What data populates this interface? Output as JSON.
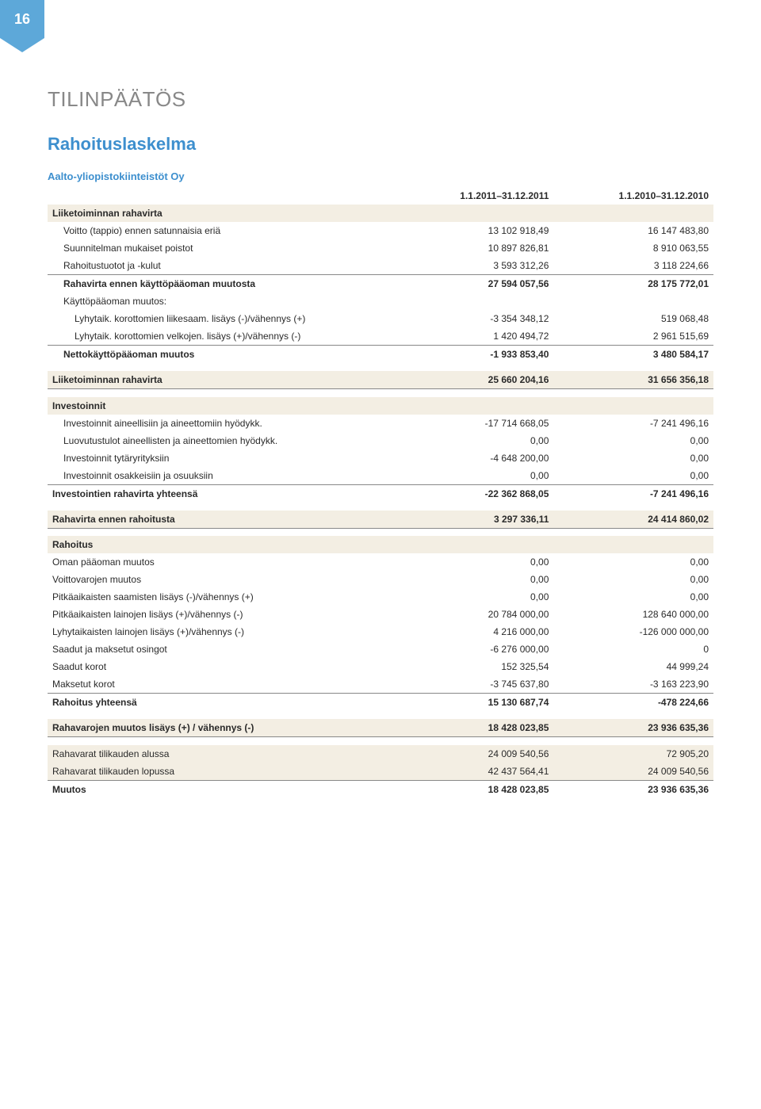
{
  "page_number": "16",
  "title": "TILINPÄÄTÖS",
  "subtitle": "Rahoituslaskelma",
  "company": "Aalto-yliopistokiinteistöt Oy",
  "col_headers": [
    "",
    "1.1.2011–31.12.2011",
    "1.1.2010–31.12.2010"
  ],
  "rows": [
    {
      "label": "Liiketoiminnan rahavirta",
      "v1": "",
      "v2": "",
      "bold": true,
      "band": true
    },
    {
      "label": "Voitto (tappio) ennen satunnaisia eriä",
      "v1": "13 102 918,49",
      "v2": "16 147 483,80",
      "indent": 1
    },
    {
      "label": "Suunnitelman mukaiset poistot",
      "v1": "10 897 826,81",
      "v2": "8 910 063,55",
      "indent": 1
    },
    {
      "label": "Rahoitustuotot ja -kulut",
      "v1": "3 593 312,26",
      "v2": "3 118 224,66",
      "indent": 1,
      "underline": true
    },
    {
      "label": "Rahavirta ennen käyttöpääoman muutosta",
      "v1": "27 594 057,56",
      "v2": "28 175 772,01",
      "bold": true,
      "indent": 1
    },
    {
      "label": "Käyttöpääoman muutos:",
      "v1": "",
      "v2": "",
      "indent": 1
    },
    {
      "label": "Lyhytaik. korottomien liikesaam. lisäys (-)/vähennys (+)",
      "v1": "-3 354 348,12",
      "v2": "519 068,48",
      "indent": 2
    },
    {
      "label": "Lyhytaik. korottomien velkojen. lisäys (+)/vähennys (-)",
      "v1": "1 420 494,72",
      "v2": "2 961 515,69",
      "indent": 2,
      "underline": true
    },
    {
      "label": "Nettokäyttöpääoman muutos",
      "v1": "-1 933 853,40",
      "v2": "3 480 584,17",
      "bold": true,
      "indent": 1
    },
    {
      "gap": true
    },
    {
      "label": "Liiketoiminnan rahavirta",
      "v1": "25 660 204,16",
      "v2": "31 656 356,18",
      "bold": true,
      "band": true,
      "underline": true
    },
    {
      "gap": true
    },
    {
      "label": "Investoinnit",
      "v1": "",
      "v2": "",
      "bold": true,
      "band": true
    },
    {
      "label": "Investoinnit aineellisiin ja aineettomiin hyödykk.",
      "v1": "-17 714 668,05",
      "v2": "-7 241 496,16",
      "indent": 1
    },
    {
      "label": "Luovutustulot aineellisten ja aineettomien hyödykk.",
      "v1": "0,00",
      "v2": "0,00",
      "indent": 1
    },
    {
      "label": "Investoinnit tytäryrityksiin",
      "v1": "-4 648 200,00",
      "v2": "0,00",
      "indent": 1
    },
    {
      "label": "Investoinnit osakkeisiin ja osuuksiin",
      "v1": "0,00",
      "v2": "0,00",
      "indent": 1,
      "underline": true
    },
    {
      "label": "Investointien rahavirta yhteensä",
      "v1": "-22 362 868,05",
      "v2": "-7 241 496,16",
      "bold": true
    },
    {
      "gap": true
    },
    {
      "label": "Rahavirta ennen rahoitusta",
      "v1": "3 297 336,11",
      "v2": "24 414 860,02",
      "bold": true,
      "band": true,
      "underline": true
    },
    {
      "gap": true
    },
    {
      "label": "Rahoitus",
      "v1": "",
      "v2": "",
      "bold": true,
      "band": true
    },
    {
      "label": "Oman pääoman muutos",
      "v1": "0,00",
      "v2": "0,00"
    },
    {
      "label": "Voittovarojen muutos",
      "v1": "0,00",
      "v2": "0,00"
    },
    {
      "label": "Pitkäaikaisten saamisten lisäys (-)/vähennys (+)",
      "v1": "0,00",
      "v2": "0,00"
    },
    {
      "label": "Pitkäaikaisten lainojen lisäys (+)/vähennys (-)",
      "v1": "20 784 000,00",
      "v2": "128 640 000,00"
    },
    {
      "label": "Lyhytaikaisten lainojen lisäys (+)/vähennys (-)",
      "v1": "4 216 000,00",
      "v2": "-126 000 000,00"
    },
    {
      "label": "Saadut ja maksetut osingot",
      "v1": "-6 276 000,00",
      "v2": "0"
    },
    {
      "label": "Saadut korot",
      "v1": "152 325,54",
      "v2": "44 999,24"
    },
    {
      "label": "Maksetut korot",
      "v1": "-3 745 637,80",
      "v2": "-3 163 223,90",
      "underline": true
    },
    {
      "label": "Rahoitus yhteensä",
      "v1": "15 130 687,74",
      "v2": "-478 224,66",
      "bold": true
    },
    {
      "gap": true
    },
    {
      "label": "Rahavarojen muutos lisäys (+) / vähennys (-)",
      "v1": "18 428 023,85",
      "v2": "23 936 635,36",
      "bold": true,
      "band": true,
      "underline": true
    },
    {
      "gap": true
    },
    {
      "label": "Rahavarat tilikauden alussa",
      "v1": "24 009 540,56",
      "v2": "72 905,20",
      "band": true
    },
    {
      "label": "Rahavarat tilikauden lopussa",
      "v1": "42 437 564,41",
      "v2": "24 009 540,56",
      "band": true,
      "underline": true
    },
    {
      "label": "Muutos",
      "v1": "18 428 023,85",
      "v2": "23 936 635,36",
      "bold": true
    }
  ]
}
